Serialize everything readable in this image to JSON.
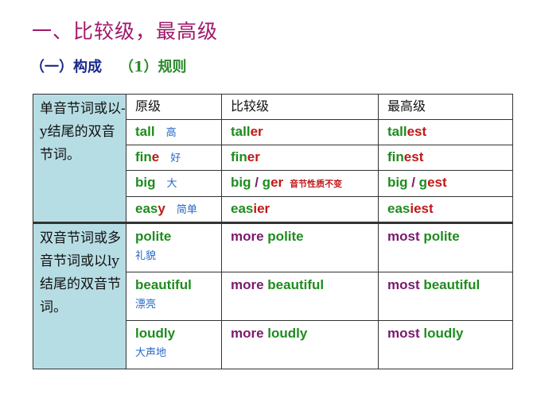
{
  "title": "一、比较级，最高级",
  "subtitle": {
    "section": "（一）构成",
    "rule": "（1）规则"
  },
  "colors": {
    "title": "#a0186a",
    "green": "#1e8c1e",
    "red": "#c01818",
    "purple": "#7a1a6e",
    "blue": "#2468c8",
    "side_bg": "#b7dde4"
  },
  "table": {
    "headers": [
      "原级",
      "比较级",
      "最高级"
    ],
    "groups": [
      {
        "label": "单音节词或以-y结尾的双音节词。",
        "rows": [
          {
            "base": [
              {
                "t": "tall",
                "c": "green"
              }
            ],
            "meaning": "高",
            "comp": [
              {
                "t": "tall",
                "c": "green"
              },
              {
                "t": "er",
                "c": "red"
              }
            ],
            "sup": [
              {
                "t": "tall",
                "c": "green"
              },
              {
                "t": "est",
                "c": "red"
              }
            ]
          },
          {
            "base": [
              {
                "t": "fin",
                "c": "green"
              },
              {
                "t": "e",
                "c": "red"
              }
            ],
            "meaning": "好",
            "comp": [
              {
                "t": "fin",
                "c": "green"
              },
              {
                "t": "er",
                "c": "red"
              }
            ],
            "sup": [
              {
                "t": "fin",
                "c": "green"
              },
              {
                "t": "est",
                "c": "red"
              }
            ]
          },
          {
            "base": [
              {
                "t": "big",
                "c": "green"
              }
            ],
            "meaning": "大",
            "comp": [
              {
                "t": "big",
                "c": "green"
              },
              {
                "t": " / ",
                "c": "purple"
              },
              {
                "t": "g",
                "c": "green"
              },
              {
                "t": "er",
                "c": "red"
              }
            ],
            "note": "音节性质不变",
            "sup": [
              {
                "t": "big",
                "c": "green"
              },
              {
                "t": " / ",
                "c": "purple"
              },
              {
                "t": "g",
                "c": "green"
              },
              {
                "t": "est",
                "c": "red"
              }
            ]
          },
          {
            "base": [
              {
                "t": "eas",
                "c": "green"
              },
              {
                "t": "y",
                "c": "red"
              }
            ],
            "meaning": "简单",
            "comp": [
              {
                "t": "eas",
                "c": "green"
              },
              {
                "t": "ier",
                "c": "red"
              }
            ],
            "sup": [
              {
                "t": "eas",
                "c": "green"
              },
              {
                "t": "iest",
                "c": "red"
              }
            ]
          }
        ]
      },
      {
        "label": "双音节词或多音节词或以ly结尾的双音节词。",
        "rows": [
          {
            "base": [
              {
                "t": "polite",
                "c": "green"
              }
            ],
            "meaning": "礼貌",
            "comp": [
              {
                "t": "more ",
                "c": "purple"
              },
              {
                "t": "polite",
                "c": "green"
              }
            ],
            "sup": [
              {
                "t": "most ",
                "c": "purple"
              },
              {
                "t": "polite",
                "c": "green"
              }
            ]
          },
          {
            "base": [
              {
                "t": "beautiful",
                "c": "green"
              }
            ],
            "meaning": "漂亮",
            "comp": [
              {
                "t": "more ",
                "c": "purple"
              },
              {
                "t": "beautiful",
                "c": "green"
              }
            ],
            "sup": [
              {
                "t": "most ",
                "c": "purple"
              },
              {
                "t": "beautiful",
                "c": "green"
              }
            ]
          },
          {
            "base": [
              {
                "t": "loudly",
                "c": "green"
              }
            ],
            "meaning": "大声地",
            "comp": [
              {
                "t": "more ",
                "c": "purple"
              },
              {
                "t": "loudly",
                "c": "green"
              }
            ],
            "sup": [
              {
                "t": "most ",
                "c": "purple"
              },
              {
                "t": "loudly",
                "c": "green"
              }
            ]
          }
        ]
      }
    ]
  }
}
